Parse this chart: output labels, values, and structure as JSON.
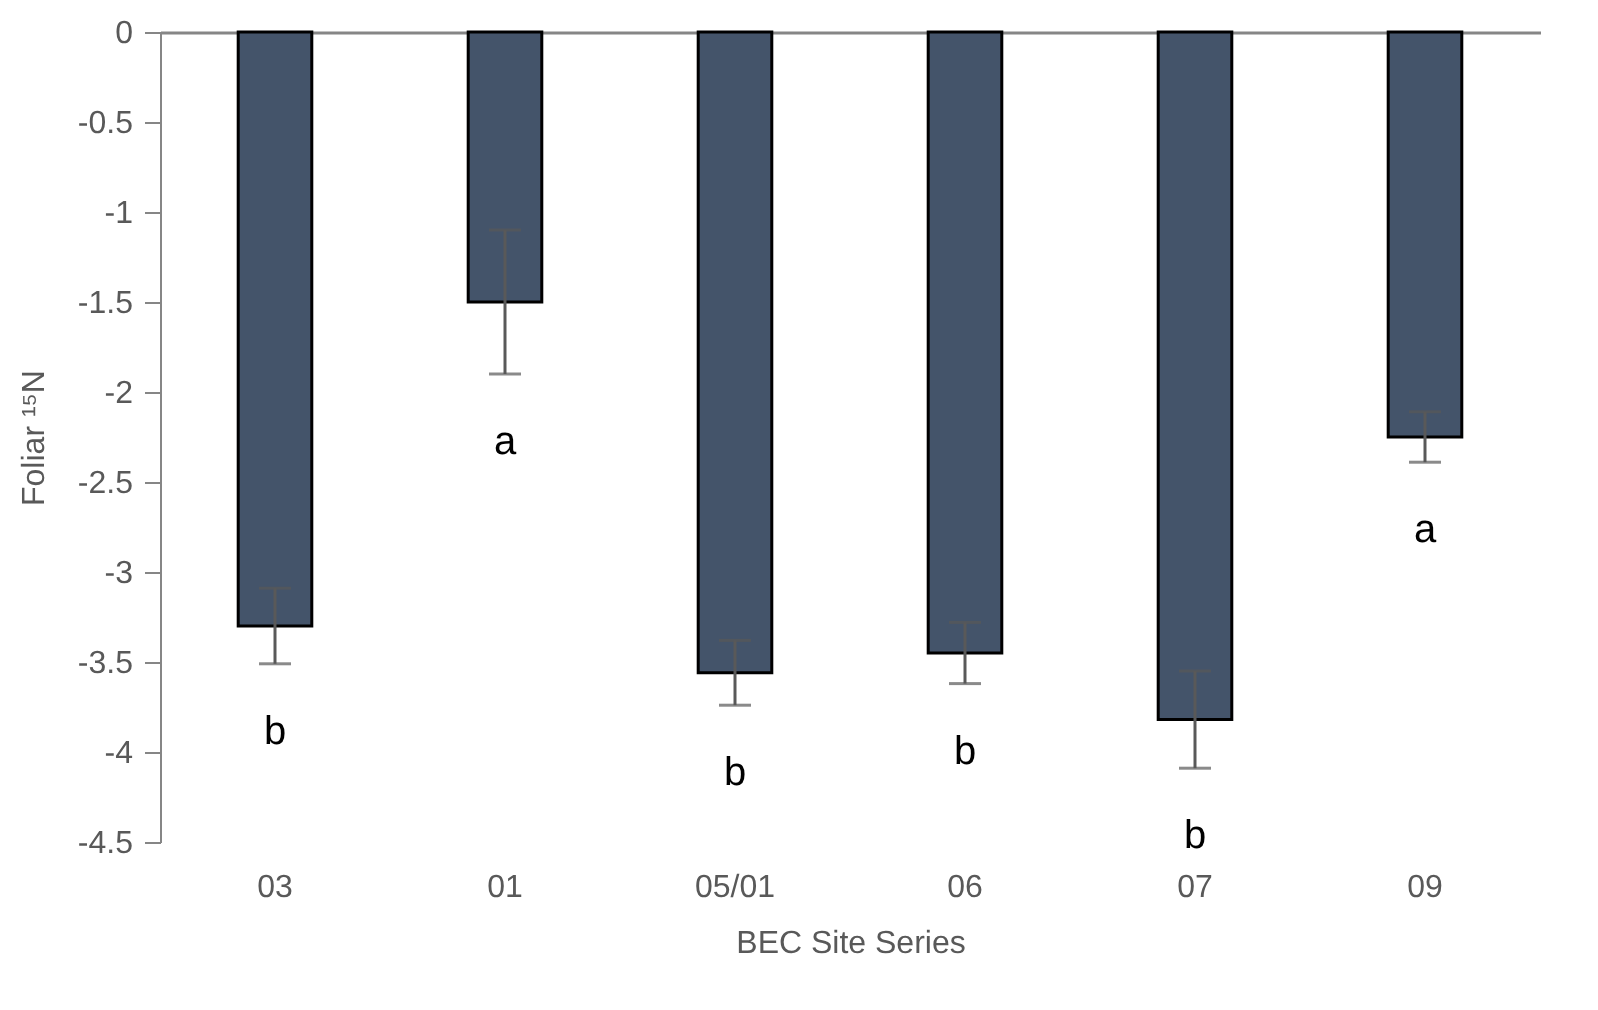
{
  "chart_data": {
    "type": "bar",
    "xlabel": "BEC Site Series",
    "ylabel": "Foliar ¹⁵N",
    "categories": [
      "03",
      "01",
      "05/01",
      "06",
      "07",
      "09"
    ],
    "values": [
      -3.3,
      -1.5,
      -3.56,
      -3.45,
      -3.82,
      -2.25
    ],
    "errors": [
      0.21,
      0.4,
      0.18,
      0.17,
      0.27,
      0.14
    ],
    "color": "#44546a",
    "ylim": [
      -4.5,
      0
    ],
    "yticks": [
      -4.5,
      -4,
      -3.5,
      -3,
      -2.5,
      -2,
      -1.5,
      -1,
      -0.5,
      0
    ],
    "grid": false,
    "annotations": [
      "b",
      "a",
      "b",
      "b",
      "b",
      "a"
    ]
  }
}
